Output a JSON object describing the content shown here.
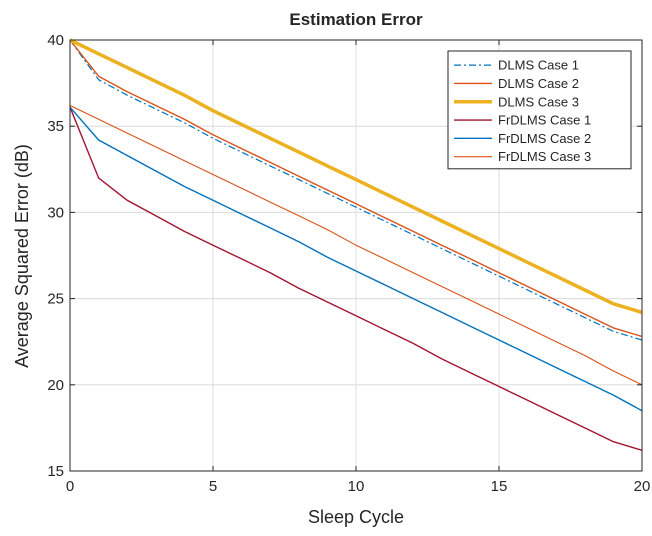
{
  "chart_data": {
    "type": "line",
    "title": "Estimation Error",
    "xlabel": "Sleep Cycle",
    "ylabel": "Average Squared Error (dB)",
    "xlim": [
      0,
      20
    ],
    "ylim": [
      15,
      40
    ],
    "xticks": [
      "0",
      "5",
      "10",
      "15",
      "20"
    ],
    "yticks": [
      "15",
      "20",
      "25",
      "30",
      "35",
      "40"
    ],
    "grid": true,
    "legend_position": "top-right",
    "x": [
      0,
      1,
      2,
      3,
      4,
      5,
      6,
      7,
      8,
      9,
      10,
      11,
      12,
      13,
      14,
      15,
      16,
      17,
      18,
      19,
      20
    ],
    "series": [
      {
        "name": "DLMS Case 1",
        "color": "#0072BD",
        "style": "dashdot",
        "width": 1.2,
        "values": [
          40.0,
          37.7,
          36.8,
          36.0,
          35.2,
          34.3,
          33.5,
          32.7,
          31.9,
          31.1,
          30.3,
          29.5,
          28.7,
          27.9,
          27.1,
          26.3,
          25.5,
          24.7,
          23.9,
          23.1,
          22.6
        ]
      },
      {
        "name": "DLMS Case 2",
        "color": "#D95319",
        "style": "solid",
        "width": 1.4,
        "values": [
          40.0,
          37.9,
          37.0,
          36.2,
          35.4,
          34.5,
          33.7,
          32.9,
          32.1,
          31.3,
          30.5,
          29.7,
          28.9,
          28.1,
          27.3,
          26.5,
          25.7,
          24.9,
          24.1,
          23.3,
          22.8
        ]
      },
      {
        "name": "DLMS Case 3",
        "color": "#EDB120",
        "style": "solid",
        "width": 3.5,
        "values": [
          40.0,
          39.2,
          38.4,
          37.6,
          36.8,
          35.9,
          35.1,
          34.3,
          33.5,
          32.7,
          31.9,
          31.1,
          30.3,
          29.5,
          28.7,
          27.9,
          27.1,
          26.3,
          25.5,
          24.7,
          24.2
        ]
      },
      {
        "name": "FrDLMS Case 1",
        "color": "#A2142F",
        "style": "solid",
        "width": 1.4,
        "values": [
          36.1,
          32.0,
          30.7,
          29.8,
          28.9,
          28.1,
          27.3,
          26.5,
          25.6,
          24.8,
          24.0,
          23.2,
          22.4,
          21.5,
          20.7,
          19.9,
          19.1,
          18.3,
          17.5,
          16.7,
          16.2
        ]
      },
      {
        "name": "FrDLMS Case 2",
        "color": "#0072BD",
        "style": "solid",
        "width": 1.4,
        "values": [
          36.1,
          34.2,
          33.3,
          32.4,
          31.5,
          30.7,
          29.9,
          29.1,
          28.3,
          27.4,
          26.6,
          25.8,
          25.0,
          24.2,
          23.4,
          22.6,
          21.8,
          21.0,
          20.2,
          19.4,
          18.5
        ]
      },
      {
        "name": "FrDLMS Case 3",
        "color": "#D95319",
        "style": "solid",
        "width": 1.1,
        "values": [
          36.2,
          35.4,
          34.6,
          33.8,
          33.0,
          32.2,
          31.4,
          30.6,
          29.8,
          29.0,
          28.1,
          27.3,
          26.5,
          25.7,
          24.9,
          24.1,
          23.3,
          22.5,
          21.7,
          20.8,
          20.0
        ]
      }
    ]
  }
}
